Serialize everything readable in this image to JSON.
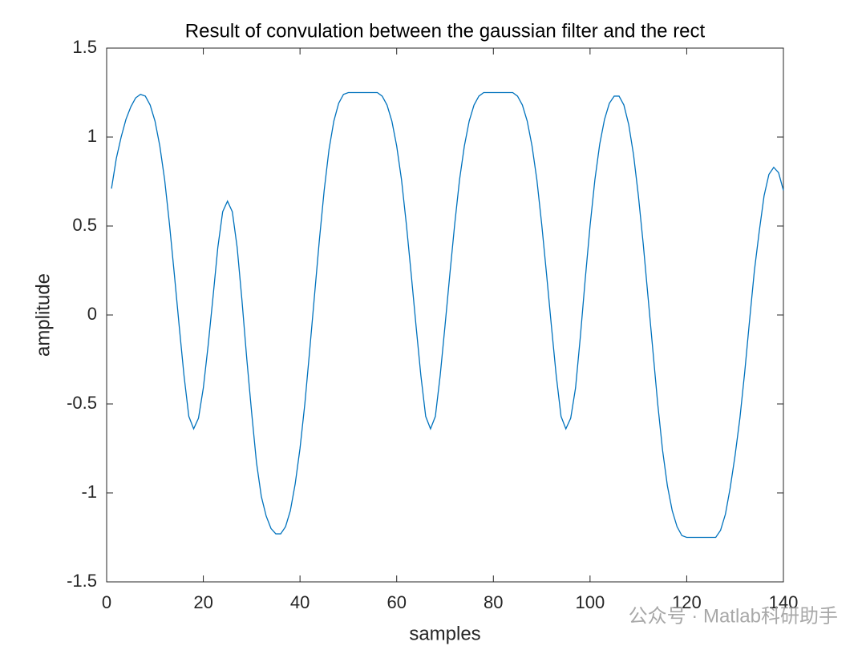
{
  "chart_data": {
    "type": "line",
    "title": "Result of convulation between the gaussian filter and the rect",
    "x_label": "samples",
    "y_label": "amplitude",
    "x": [
      1,
      2,
      3,
      4,
      5,
      6,
      7,
      8,
      9,
      10,
      11,
      12,
      13,
      14,
      15,
      16,
      17,
      18,
      19,
      20,
      21,
      22,
      23,
      24,
      25,
      26,
      27,
      28,
      29,
      30,
      31,
      32,
      33,
      34,
      35,
      36,
      37,
      38,
      39,
      40,
      41,
      42,
      43,
      44,
      45,
      46,
      47,
      48,
      49,
      50,
      51,
      52,
      53,
      54,
      55,
      56,
      57,
      58,
      59,
      60,
      61,
      62,
      63,
      64,
      65,
      66,
      67,
      68,
      69,
      70,
      71,
      72,
      73,
      74,
      75,
      76,
      77,
      78,
      79,
      80,
      81,
      82,
      83,
      84,
      85,
      86,
      87,
      88,
      89,
      90,
      91,
      92,
      93,
      94,
      95,
      96,
      97,
      98,
      99,
      100,
      101,
      102,
      103,
      104,
      105,
      106,
      107,
      108,
      109,
      110,
      111,
      112,
      113,
      114,
      115,
      116,
      117,
      118,
      119,
      120,
      121,
      122,
      123,
      124,
      125,
      126,
      127,
      128,
      129,
      130,
      131,
      132,
      133,
      134,
      135,
      136,
      137,
      138,
      139,
      140
    ],
    "series": [
      {
        "color": "#0072BD",
        "values": [
          0.71,
          0.88,
          1.0,
          1.1,
          1.17,
          1.22,
          1.24,
          1.23,
          1.18,
          1.09,
          0.95,
          0.76,
          0.51,
          0.23,
          -0.06,
          -0.34,
          -0.57,
          -0.64,
          -0.58,
          -0.41,
          -0.17,
          0.1,
          0.38,
          0.58,
          0.64,
          0.58,
          0.38,
          0.08,
          -0.25,
          -0.55,
          -0.83,
          -1.02,
          -1.13,
          -1.2,
          -1.23,
          -1.23,
          -1.19,
          -1.1,
          -0.95,
          -0.75,
          -0.5,
          -0.2,
          0.11,
          0.42,
          0.7,
          0.93,
          1.09,
          1.19,
          1.24,
          1.25,
          1.25,
          1.25,
          1.25,
          1.25,
          1.25,
          1.25,
          1.23,
          1.18,
          1.09,
          0.95,
          0.76,
          0.51,
          0.23,
          -0.06,
          -0.34,
          -0.57,
          -0.64,
          -0.57,
          -0.34,
          -0.06,
          0.23,
          0.51,
          0.76,
          0.95,
          1.09,
          1.18,
          1.23,
          1.25,
          1.25,
          1.25,
          1.25,
          1.25,
          1.25,
          1.25,
          1.23,
          1.18,
          1.09,
          0.95,
          0.76,
          0.51,
          0.23,
          -0.06,
          -0.34,
          -0.57,
          -0.64,
          -0.58,
          -0.41,
          -0.12,
          0.2,
          0.5,
          0.76,
          0.96,
          1.1,
          1.19,
          1.23,
          1.23,
          1.18,
          1.07,
          0.9,
          0.67,
          0.4,
          0.1,
          -0.2,
          -0.5,
          -0.76,
          -0.96,
          -1.1,
          -1.19,
          -1.24,
          -1.25,
          -1.25,
          -1.25,
          -1.25,
          -1.25,
          -1.25,
          -1.25,
          -1.21,
          -1.12,
          -0.97,
          -0.79,
          -0.58,
          -0.32,
          -0.03,
          0.25,
          0.47,
          0.67,
          0.79,
          0.83,
          0.8,
          0.7
        ]
      }
    ],
    "xlim": [
      0,
      140
    ],
    "xticks": [
      0,
      20,
      40,
      60,
      80,
      100,
      120,
      140
    ],
    "ylim": [
      -1.5,
      1.5
    ],
    "yticks": [
      -1.5,
      -1,
      -0.5,
      0,
      0.5,
      1,
      1.5
    ],
    "grid": false
  },
  "watermark": "公众号 · Matlab科研助手"
}
